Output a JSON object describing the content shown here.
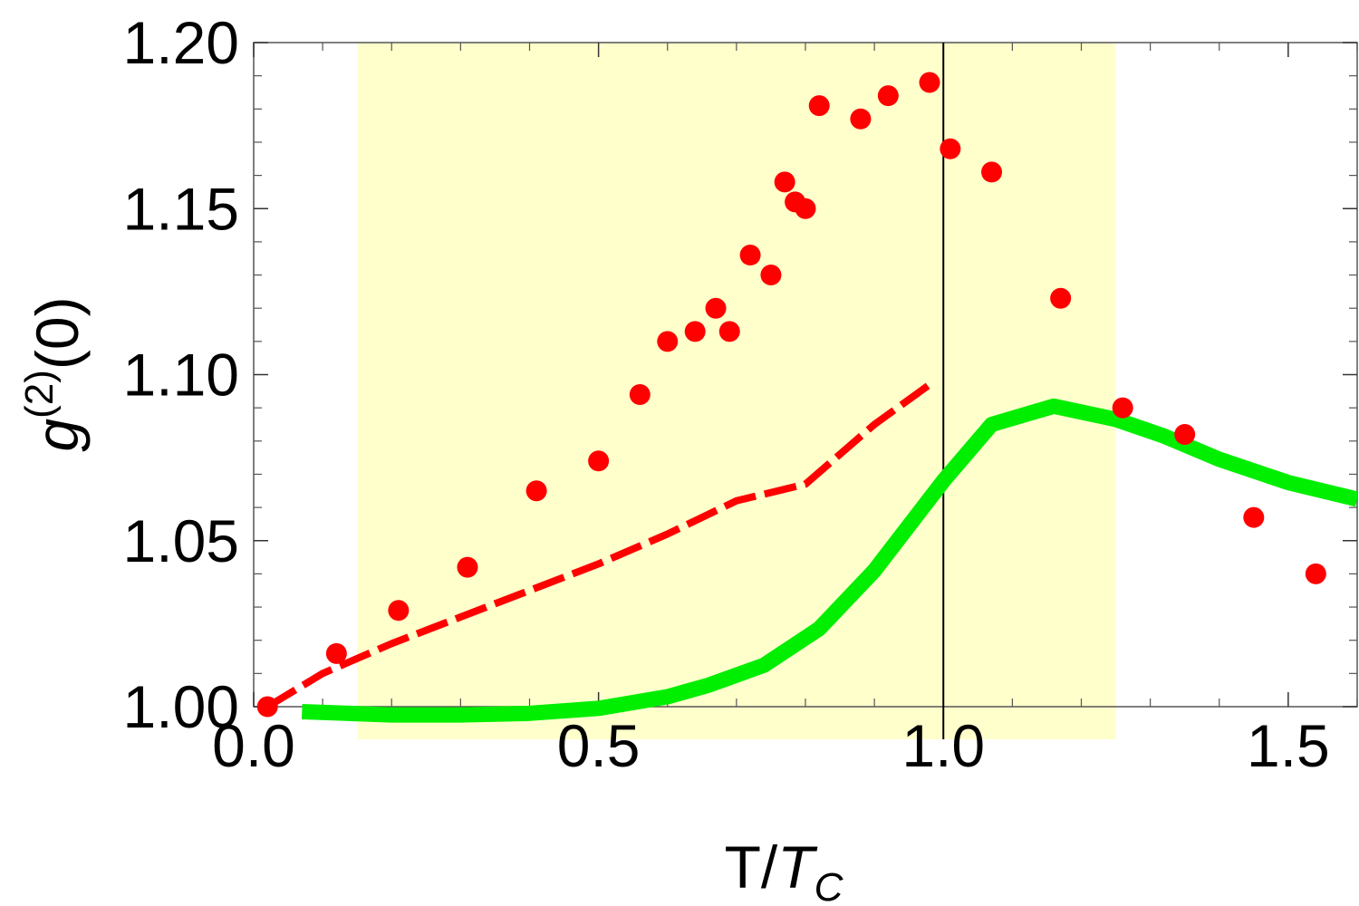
{
  "chart_data": {
    "type": "scatter",
    "xlabel": {
      "main": "T/",
      "italic": "T",
      "sub": "C"
    },
    "ylabel": {
      "main": "g",
      "sup": "(2)",
      "tail": "(0)"
    },
    "xlim": [
      0.0,
      1.6
    ],
    "ylim": [
      1.0,
      1.2
    ],
    "x_ticks": [
      {
        "value": 0.0,
        "label": "0.0"
      },
      {
        "value": 0.5,
        "label": "0.5"
      },
      {
        "value": 1.0,
        "label": "1.0"
      },
      {
        "value": 1.5,
        "label": "1.5"
      }
    ],
    "y_ticks": [
      {
        "value": 1.0,
        "label": "1.00"
      },
      {
        "value": 1.05,
        "label": "1.05"
      },
      {
        "value": 1.1,
        "label": "1.10"
      },
      {
        "value": 1.15,
        "label": "1.15"
      },
      {
        "value": 1.2,
        "label": "1.20"
      }
    ],
    "x_minor_step": 0.1,
    "y_minor_step": 0.01,
    "grid": false,
    "shaded_region": {
      "x": [
        0.15,
        1.25
      ],
      "color": "#ffffcc"
    },
    "vertical_line": {
      "x": 1.0,
      "color": "#000000"
    },
    "series": [
      {
        "kind": "points",
        "color": "#ff0000",
        "x": [
          0.02,
          0.12,
          0.21,
          0.31,
          0.41,
          0.5,
          0.56,
          0.6,
          0.64,
          0.67,
          0.69,
          0.72,
          0.75,
          0.77,
          0.785,
          0.8,
          0.82,
          0.88,
          0.92,
          0.98,
          1.01,
          1.07,
          1.17,
          1.26,
          1.35,
          1.45,
          1.54
        ],
        "y": [
          1.0,
          1.016,
          1.029,
          1.042,
          1.065,
          1.074,
          1.094,
          1.11,
          1.113,
          1.12,
          1.113,
          1.136,
          1.13,
          1.158,
          1.152,
          1.15,
          1.181,
          1.177,
          1.184,
          1.188,
          1.168,
          1.161,
          1.123,
          1.09,
          1.082,
          1.057,
          1.04
        ]
      },
      {
        "kind": "dashed-line",
        "color": "#ff0000",
        "x": [
          0.02,
          0.1,
          0.2,
          0.3,
          0.4,
          0.5,
          0.6,
          0.7,
          0.8,
          0.9,
          0.98
        ],
        "y": [
          1.0,
          1.01,
          1.019,
          1.027,
          1.035,
          1.043,
          1.052,
          1.062,
          1.067,
          1.085,
          1.097
        ]
      },
      {
        "kind": "solid-line",
        "color": "#00ee00",
        "x": [
          0.07,
          0.2,
          0.3,
          0.4,
          0.5,
          0.6,
          0.66,
          0.74,
          0.82,
          0.9,
          1.0,
          1.07,
          1.16,
          1.25,
          1.32,
          1.4,
          1.5,
          1.6
        ],
        "y": [
          0.9985,
          0.9975,
          0.9975,
          0.998,
          0.9995,
          1.003,
          1.0065,
          1.0125,
          1.0235,
          1.041,
          1.068,
          1.085,
          1.0905,
          1.0865,
          1.0815,
          1.0745,
          1.0675,
          1.0625
        ]
      }
    ]
  }
}
